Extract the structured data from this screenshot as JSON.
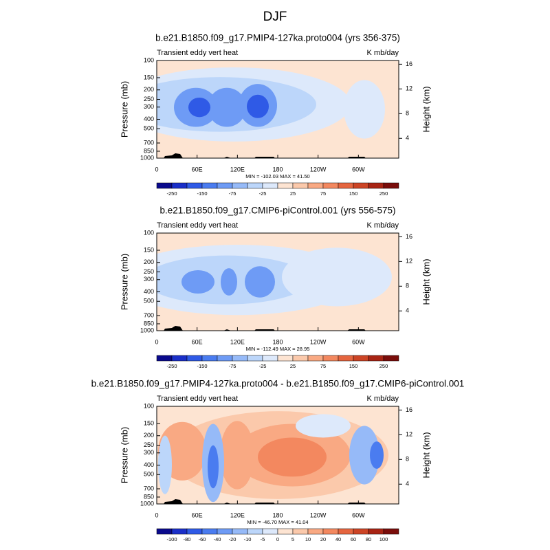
{
  "title": "DJF",
  "chart_data": [
    {
      "type": "contour",
      "title": "b.e21.B1850.f09_g17.PMIP4-127ka.proto004 (yrs 356-375)",
      "left_label": "Transient eddy vert heat",
      "right_label": "K mb/day",
      "ylabel": "Pressure (mb)",
      "y2label": "Height (km)",
      "log_scale": true,
      "xlim": [
        0,
        360
      ],
      "xticks": [
        0,
        {
          "value": 60,
          "label": "60E"
        },
        {
          "value": 120,
          "label": "120E"
        },
        180,
        {
          "value": 240,
          "label": "120W"
        },
        {
          "value": 300,
          "label": "60W"
        }
      ],
      "ylim": [
        100,
        1000
      ],
      "yticks": [
        100,
        150,
        200,
        250,
        300,
        400,
        500,
        700,
        850,
        1000
      ],
      "y2lim": [
        0.8,
        16.6
      ],
      "y2ticks": [
        4,
        8,
        12,
        16
      ],
      "stats_text": "MIN = -102.03  MAX =  41.50",
      "colorbar": {
        "labels": [
          -250,
          -150,
          -75,
          -25,
          25,
          75,
          150,
          250
        ],
        "colors": [
          "#0a0a8c",
          "#1a2fc8",
          "#2f5ae6",
          "#4a7cf0",
          "#6e9bf5",
          "#96baf8",
          "#bcd6fa",
          "#dde9fb",
          "#fde4d2",
          "#fbc9ab",
          "#f9a983",
          "#f3885f",
          "#e5653f",
          "#cc4425",
          "#a82414",
          "#7a0d0b"
        ]
      }
    },
    {
      "type": "contour",
      "title": "b.e21.B1850.f09_g17.CMIP6-piControl.001 (yrs 556-575)",
      "left_label": "Transient eddy vert heat",
      "right_label": "K mb/day",
      "ylabel": "Pressure (mb)",
      "y2label": "Height (km)",
      "log_scale": true,
      "xlim": [
        0,
        360
      ],
      "xticks": [
        0,
        {
          "value": 60,
          "label": "60E"
        },
        {
          "value": 120,
          "label": "120E"
        },
        180,
        {
          "value": 240,
          "label": "120W"
        },
        {
          "value": 300,
          "label": "60W"
        }
      ],
      "ylim": [
        100,
        1000
      ],
      "yticks": [
        100,
        150,
        200,
        250,
        300,
        400,
        500,
        700,
        850,
        1000
      ],
      "y2lim": [
        0.8,
        16.6
      ],
      "y2ticks": [
        4,
        8,
        12,
        16
      ],
      "stats_text": "MIN = -112.49  MAX =  28.95",
      "colorbar": {
        "labels": [
          -250,
          -150,
          -75,
          -25,
          25,
          75,
          150,
          250
        ],
        "colors": [
          "#0a0a8c",
          "#1a2fc8",
          "#2f5ae6",
          "#4a7cf0",
          "#6e9bf5",
          "#96baf8",
          "#bcd6fa",
          "#dde9fb",
          "#fde4d2",
          "#fbc9ab",
          "#f9a983",
          "#f3885f",
          "#e5653f",
          "#cc4425",
          "#a82414",
          "#7a0d0b"
        ]
      }
    },
    {
      "type": "contour",
      "title": "b.e21.B1850.f09_g17.PMIP4-127ka.proto004 - b.e21.B1850.f09_g17.CMIP6-piControl.001",
      "left_label": "Transient eddy vert heat",
      "right_label": "K mb/day",
      "ylabel": "Pressure (mb)",
      "y2label": "Height (km)",
      "log_scale": true,
      "xlim": [
        0,
        360
      ],
      "xticks": [
        0,
        {
          "value": 60,
          "label": "60E"
        },
        {
          "value": 120,
          "label": "120E"
        },
        180,
        {
          "value": 240,
          "label": "120W"
        },
        {
          "value": 300,
          "label": "60W"
        }
      ],
      "ylim": [
        100,
        1000
      ],
      "yticks": [
        100,
        150,
        200,
        250,
        300,
        400,
        500,
        700,
        850,
        1000
      ],
      "y2lim": [
        0.8,
        16.6
      ],
      "y2ticks": [
        4,
        8,
        12,
        16
      ],
      "stats_text": "MIN = -46.70  MAX =  41.04",
      "colorbar": {
        "labels": [
          -100,
          -80,
          -60,
          -40,
          -20,
          -10,
          -5,
          0,
          5,
          10,
          20,
          40,
          60,
          80,
          100
        ],
        "colors": [
          "#0a0a8c",
          "#1a2fc8",
          "#2f5ae6",
          "#4a7cf0",
          "#6e9bf5",
          "#96baf8",
          "#bcd6fa",
          "#dde9fb",
          "#fde4d2",
          "#fbc9ab",
          "#f9a983",
          "#f3885f",
          "#e5653f",
          "#cc4425",
          "#a82414",
          "#7a0d0b"
        ]
      }
    }
  ]
}
